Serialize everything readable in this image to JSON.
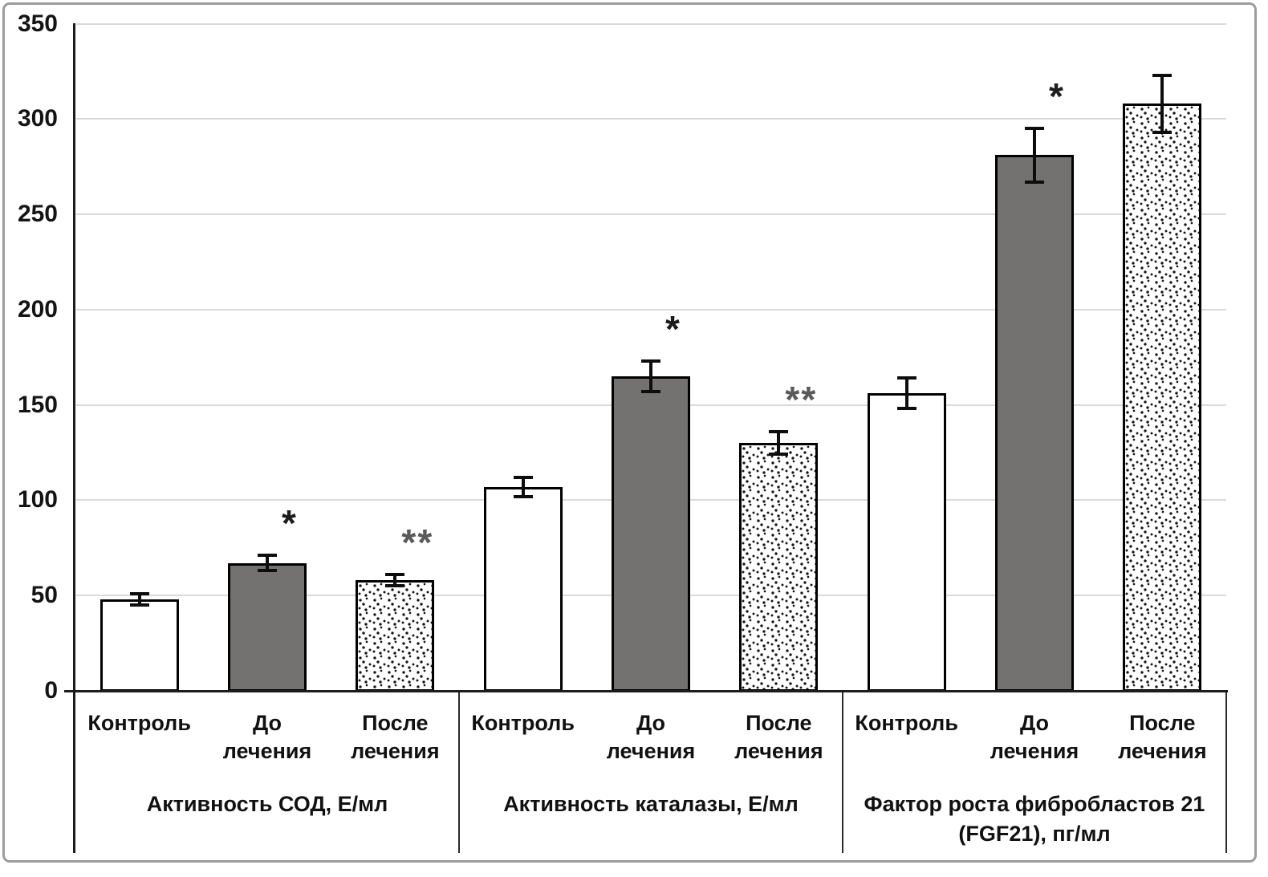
{
  "figure": {
    "frame_color": "#9c9c9c",
    "background": "#ffffff"
  },
  "colors": {
    "bar_white_fill": "#ffffff",
    "bar_gray_fill": "#747171",
    "bar_border": "#000000",
    "gridline": "#dadada",
    "axis": "#1c1c1c",
    "error_bar": "#0d0d0d",
    "annotation_single": "#1c1c1c",
    "annotation_double": "#5a5a5a",
    "tick_label": "#141414"
  },
  "chart_data": {
    "type": "bar",
    "title": "",
    "xlabel": "",
    "ylabel": "",
    "ylim": [
      0,
      350
    ],
    "y_ticks": [
      0,
      50,
      100,
      150,
      200,
      250,
      300,
      350
    ],
    "grid": true,
    "legend_position": "none",
    "error_bars": true,
    "groups": [
      {
        "label": "Активность СОД, Е/мл",
        "bars": [
          {
            "category": "Контроль",
            "value": 48,
            "error": 3,
            "annotation": "",
            "fill": "white"
          },
          {
            "category": "До лечения",
            "value": 67,
            "error": 4,
            "annotation": "*",
            "fill": "gray"
          },
          {
            "category": "После лечения",
            "value": 58,
            "error": 3,
            "annotation": "**",
            "fill": "stipple"
          }
        ]
      },
      {
        "label": "Активность каталазы, Е/мл",
        "bars": [
          {
            "category": "Контроль",
            "value": 107,
            "error": 5,
            "annotation": "",
            "fill": "white"
          },
          {
            "category": "До лечения",
            "value": 165,
            "error": 8,
            "annotation": "*",
            "fill": "gray"
          },
          {
            "category": "После лечения",
            "value": 130,
            "error": 6,
            "annotation": "**",
            "fill": "stipple"
          }
        ]
      },
      {
        "label": "Фактор роста фибробластов 21 (FGF21), пг/мл",
        "bars": [
          {
            "category": "Контроль",
            "value": 156,
            "error": 8,
            "annotation": "",
            "fill": "white"
          },
          {
            "category": "До лечения",
            "value": 281,
            "error": 14,
            "annotation": "*",
            "fill": "gray"
          },
          {
            "category": "После лечения",
            "value": 308,
            "error": 15,
            "annotation": "",
            "fill": "stipple"
          }
        ]
      }
    ]
  }
}
